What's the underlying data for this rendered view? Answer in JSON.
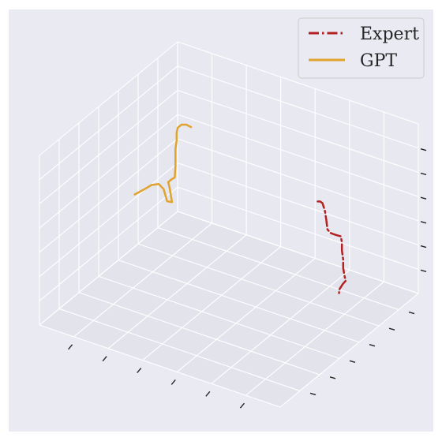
{
  "chart_data": {
    "type": "line3d",
    "title": "",
    "xlabel": "",
    "ylabel": "",
    "zlabel": "",
    "grid": true,
    "tick_labels_visible": false,
    "legend": {
      "placement": "top-right"
    },
    "axis_ranges": {
      "x": [
        0,
        1
      ],
      "y": [
        0,
        1
      ],
      "z": [
        0,
        1
      ]
    },
    "series": [
      {
        "name": "Expert",
        "color": "#b22222",
        "style": "dashdot",
        "points": [
          {
            "x": 0.8,
            "y": 0.62,
            "z": 0.7
          },
          {
            "x": 0.81,
            "y": 0.62,
            "z": 0.705
          },
          {
            "x": 0.82,
            "y": 0.62,
            "z": 0.7
          },
          {
            "x": 0.83,
            "y": 0.62,
            "z": 0.66
          },
          {
            "x": 0.83,
            "y": 0.63,
            "z": 0.6
          },
          {
            "x": 0.835,
            "y": 0.63,
            "z": 0.545
          },
          {
            "x": 0.85,
            "y": 0.63,
            "z": 0.53
          },
          {
            "x": 0.87,
            "y": 0.63,
            "z": 0.53
          },
          {
            "x": 0.89,
            "y": 0.63,
            "z": 0.532
          },
          {
            "x": 0.895,
            "y": 0.63,
            "z": 0.5
          },
          {
            "x": 0.895,
            "y": 0.63,
            "z": 0.45
          },
          {
            "x": 0.9,
            "y": 0.63,
            "z": 0.4
          },
          {
            "x": 0.9,
            "y": 0.63,
            "z": 0.35
          },
          {
            "x": 0.905,
            "y": 0.63,
            "z": 0.31
          },
          {
            "x": 0.905,
            "y": 0.64,
            "z": 0.27
          },
          {
            "x": 0.89,
            "y": 0.645,
            "z": 0.24
          },
          {
            "x": 0.875,
            "y": 0.645,
            "z": 0.2
          },
          {
            "x": 0.866,
            "y": 0.66,
            "z": 0.165
          }
        ]
      },
      {
        "name": "GPT",
        "color": "#e0a32e",
        "style": "solid",
        "points": [
          {
            "x": 0.32,
            "y": 0.54,
            "z": 0.96
          },
          {
            "x": 0.3,
            "y": 0.54,
            "z": 0.965
          },
          {
            "x": 0.28,
            "y": 0.54,
            "z": 0.955
          },
          {
            "x": 0.265,
            "y": 0.54,
            "z": 0.93
          },
          {
            "x": 0.26,
            "y": 0.54,
            "z": 0.9
          },
          {
            "x": 0.26,
            "y": 0.54,
            "z": 0.85
          },
          {
            "x": 0.255,
            "y": 0.54,
            "z": 0.8
          },
          {
            "x": 0.255,
            "y": 0.54,
            "z": 0.7
          },
          {
            "x": 0.252,
            "y": 0.54,
            "z": 0.63
          },
          {
            "x": 0.24,
            "y": 0.54,
            "z": 0.615
          },
          {
            "x": 0.225,
            "y": 0.54,
            "z": 0.59
          },
          {
            "x": 0.225,
            "y": 0.55,
            "z": 0.55
          },
          {
            "x": 0.23,
            "y": 0.55,
            "z": 0.51
          },
          {
            "x": 0.235,
            "y": 0.55,
            "z": 0.47
          },
          {
            "x": 0.215,
            "y": 0.55,
            "z": 0.465
          },
          {
            "x": 0.2,
            "y": 0.55,
            "z": 0.53
          },
          {
            "x": 0.18,
            "y": 0.55,
            "z": 0.55
          },
          {
            "x": 0.15,
            "y": 0.55,
            "z": 0.53
          },
          {
            "x": 0.12,
            "y": 0.55,
            "z": 0.49
          },
          {
            "x": 0.08,
            "y": 0.55,
            "z": 0.44
          }
        ]
      }
    ]
  }
}
